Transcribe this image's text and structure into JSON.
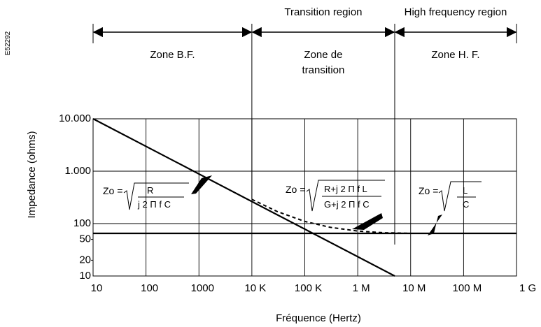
{
  "chart_data": {
    "type": "line",
    "xlabel": "Fréquence (Hertz)",
    "ylabel": "Impedance (ohms)",
    "x_scale": "log",
    "y_scale": "log",
    "xlim": [
      10,
      1000000000
    ],
    "ylim": [
      10,
      10000
    ],
    "x_ticks": [
      {
        "value": 10,
        "label": "10"
      },
      {
        "value": 100,
        "label": "100"
      },
      {
        "value": 1000,
        "label": "1000"
      },
      {
        "value": 10000,
        "label": "10 K"
      },
      {
        "value": 100000,
        "label": "100 K"
      },
      {
        "value": 1000000,
        "label": "1 M"
      },
      {
        "value": 10000000,
        "label": "10 M"
      },
      {
        "value": 100000000,
        "label": "100 M"
      },
      {
        "value": 1000000000,
        "label": "1 G"
      }
    ],
    "y_ticks": [
      {
        "value": 10,
        "label": "10"
      },
      {
        "value": 20,
        "label": "20"
      },
      {
        "value": 50,
        "label": "50"
      },
      {
        "value": 100,
        "label": "100"
      },
      {
        "value": 1000,
        "label": "1.000"
      },
      {
        "value": 10000,
        "label": "10.000"
      }
    ],
    "grid": true,
    "series": [
      {
        "style": "solid",
        "x": [
          10,
          5000000
        ],
        "y": [
          10000,
          10
        ]
      },
      {
        "style": "solid",
        "x": [
          10,
          1000000000
        ],
        "y": [
          65,
          65
        ]
      },
      {
        "style": "dashed",
        "x": [
          10000,
          30000,
          100000,
          300000,
          1000000,
          3000000,
          10000000,
          20000000
        ],
        "y": [
          290,
          170,
          110,
          85,
          72,
          67,
          65,
          65
        ]
      }
    ],
    "regions": [
      {
        "from": 10,
        "to": 10000,
        "label": "Zone B.F.",
        "header": ""
      },
      {
        "from": 10000,
        "to": 5000000,
        "label": "Zone de\ntransition",
        "header": "Transition region"
      },
      {
        "from": 5000000,
        "to": 1000000000,
        "label": "Zone H. F.",
        "header": "High frequency region"
      }
    ],
    "annotations": [
      {
        "id": "bf",
        "prefix": "Zo =",
        "num": "R",
        "den": "j 2 Π f C"
      },
      {
        "id": "tr",
        "prefix": "Zo =",
        "num": "R+j 2 Π f L",
        "den": "G+j 2 Π f C"
      },
      {
        "id": "hf",
        "prefix": "Zo =",
        "num": "L",
        "den": "C"
      }
    ],
    "side_code": "E52292"
  }
}
